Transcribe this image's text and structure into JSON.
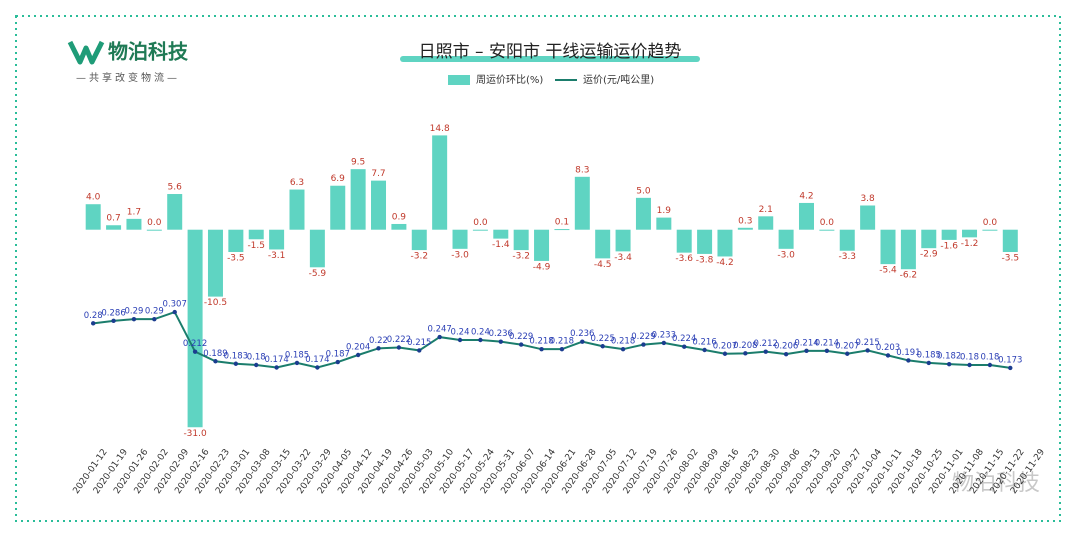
{
  "logo": {
    "name": "物泊科技",
    "slogan": "—共享改变物流—"
  },
  "watermark": "物泊科技",
  "chart_data": {
    "type": "bar-line",
    "title": "日照市 – 安阳市 干线运输运价趋势",
    "categories": [
      "2020-01-12",
      "2020-01-19",
      "2020-01-26",
      "2020-02-02",
      "2020-02-09",
      "2020-02-16",
      "2020-02-23",
      "2020-03-01",
      "2020-03-08",
      "2020-03-15",
      "2020-03-22",
      "2020-03-29",
      "2020-04-05",
      "2020-04-12",
      "2020-04-19",
      "2020-04-26",
      "2020-05-03",
      "2020-05-10",
      "2020-05-17",
      "2020-05-24",
      "2020-05-31",
      "2020-06-07",
      "2020-06-14",
      "2020-06-21",
      "2020-06-28",
      "2020-07-05",
      "2020-07-12",
      "2020-07-19",
      "2020-07-26",
      "2020-08-02",
      "2020-08-09",
      "2020-08-16",
      "2020-08-23",
      "2020-08-30",
      "2020-09-06",
      "2020-09-13",
      "2020-09-20",
      "2020-09-27",
      "2020-10-04",
      "2020-10-11",
      "2020-10-18",
      "2020-10-25",
      "2020-11-01",
      "2020-11-08",
      "2020-11-15",
      "2020-11-22",
      "2020-11-29"
    ],
    "series": [
      {
        "name": "周运价环比(%)",
        "kind": "bar",
        "color": "#5fd4c2",
        "values": [
          4.0,
          0.7,
          1.7,
          0.0,
          5.6,
          -31.0,
          -10.5,
          -3.5,
          -1.5,
          -3.1,
          6.3,
          -5.9,
          6.9,
          9.5,
          7.7,
          0.9,
          -3.2,
          14.8,
          -3.0,
          0.0,
          -1.4,
          -3.2,
          -4.9,
          0.1,
          8.3,
          -4.5,
          -3.4,
          5.0,
          1.9,
          -3.6,
          -3.8,
          -4.2,
          0.3,
          2.1,
          -3.0,
          4.2,
          0.0,
          -3.3,
          3.8,
          -5.4,
          -6.2,
          -2.9,
          -1.6,
          -1.2,
          0.0,
          -3.5,
          null
        ],
        "value_labels": [
          "4.0",
          "0.7",
          "1.7",
          "0.0",
          "5.6",
          "-31.0",
          "-10.5",
          "-3.5",
          "-1.5",
          "-3.1",
          "6.3",
          "-5.9",
          "6.9",
          "9.5",
          "7.7",
          "0.9",
          "-3.2",
          "14.8",
          "-3.0",
          "0.0",
          "-1.4",
          "-3.2",
          "-4.9",
          "0.1",
          "8.3",
          "-4.5",
          "-3.4",
          "5.0",
          "1.9",
          "-3.6",
          "-3.8",
          "-4.2",
          "0.3",
          "2.1",
          "-3.0",
          "4.2",
          "0.0",
          "-3.3",
          "3.8",
          "-5.4",
          "-6.2",
          "-2.9",
          "-1.6",
          "-1.2",
          "0.0",
          "-3.5",
          null
        ]
      },
      {
        "name": "运价(元/吨公里)",
        "kind": "line",
        "axis": "y2",
        "color": "#1b7d6c",
        "values": [
          0.28,
          0.286,
          0.29,
          0.29,
          0.307,
          0.212,
          0.189,
          0.183,
          0.18,
          0.174,
          0.185,
          0.174,
          0.187,
          0.204,
          0.22,
          0.222,
          0.215,
          0.247,
          0.24,
          0.24,
          0.236,
          0.229,
          0.218,
          0.218,
          0.236,
          0.225,
          0.218,
          0.229,
          0.233,
          0.224,
          0.216,
          0.207,
          0.208,
          0.212,
          0.206,
          0.214,
          0.214,
          0.207,
          0.215,
          0.203,
          0.191,
          0.185,
          0.182,
          0.18,
          0.18,
          0.173,
          null
        ]
      }
    ],
    "ylim": [
      -33,
      18
    ],
    "y2lim": [
      0,
      0.78
    ]
  }
}
